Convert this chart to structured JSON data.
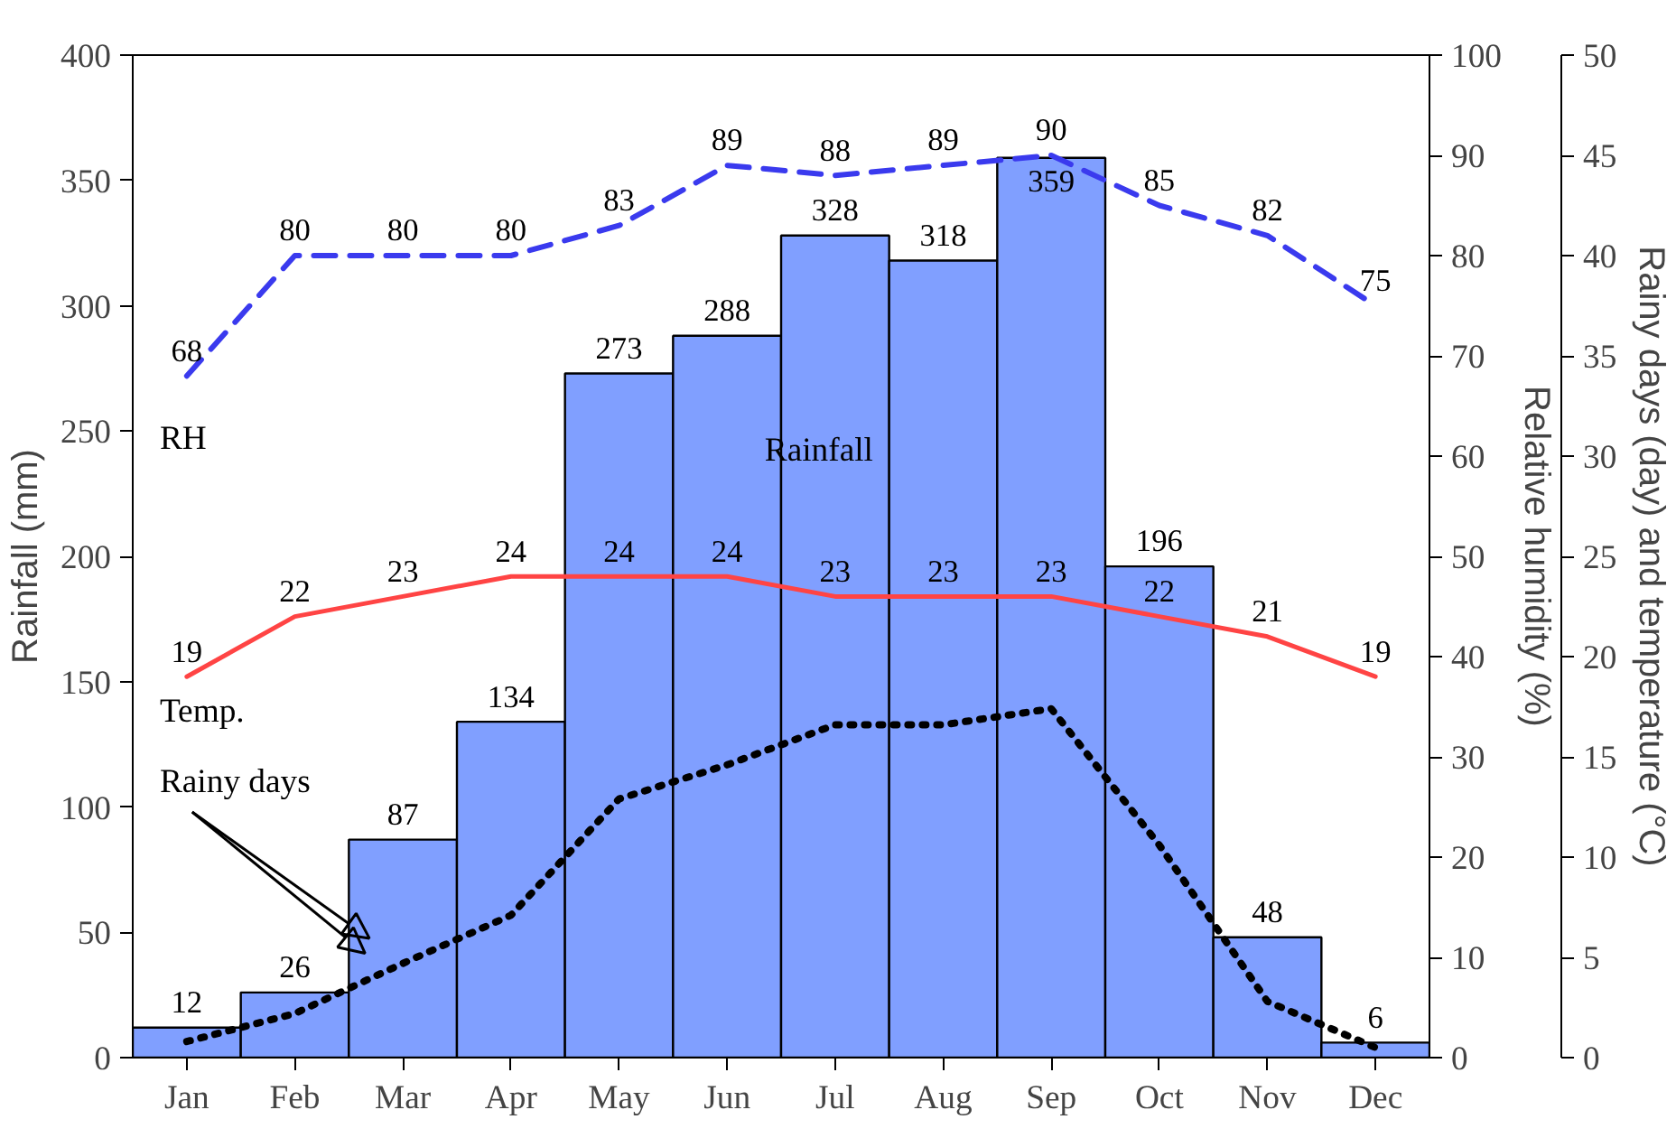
{
  "chart_data": {
    "type": "bar",
    "categories": [
      "Jan",
      "Feb",
      "Mar",
      "Apr",
      "May",
      "Jun",
      "Jul",
      "Aug",
      "Sep",
      "Oct",
      "Nov",
      "Dec"
    ],
    "ylabel": "Rainfall (mm)",
    "y2label": "Relative humidity (%)",
    "y3label": "Rainy days (day) and temperature (°C)",
    "ylim": [
      0,
      400
    ],
    "yticks": [
      0,
      50,
      100,
      150,
      200,
      250,
      300,
      350,
      400
    ],
    "y2lim": [
      0,
      100
    ],
    "y2ticks": [
      0,
      10,
      20,
      30,
      40,
      50,
      60,
      70,
      80,
      90,
      100
    ],
    "y3lim": [
      0,
      50
    ],
    "y3ticks": [
      0,
      5,
      10,
      15,
      20,
      25,
      30,
      35,
      40,
      45,
      50
    ],
    "grid": false,
    "series": [
      {
        "color": "#809fff",
        "values": [
          12,
          26,
          87,
          134,
          273,
          288,
          328,
          318,
          359,
          196,
          48,
          6
        ],
        "value_labels": [
          "12",
          "26",
          "87",
          "134",
          "273",
          "288",
          "328",
          "318",
          "359",
          "196",
          "48",
          "6"
        ]
      },
      {
        "type": "line",
        "axis": "y2",
        "color": "#3a3aee",
        "line_style": "dashed",
        "values": [
          68,
          80,
          80,
          80,
          83,
          89,
          88,
          89,
          90,
          85,
          82,
          75
        ],
        "value_labels": [
          "68",
          "80",
          "80",
          "80",
          "83",
          "89",
          "88",
          "89",
          "90",
          "85",
          "82",
          "75"
        ]
      },
      {
        "type": "line",
        "axis": "y3",
        "color": "#ff4444",
        "line_style": "solid",
        "values": [
          19,
          22,
          23,
          24,
          24,
          24,
          23,
          23,
          23,
          22,
          21,
          19
        ],
        "value_labels": [
          "19",
          "22",
          "23",
          "24",
          "24",
          "24",
          "23",
          "23",
          "23",
          "22",
          "21",
          "19"
        ]
      },
      {
        "type": "line",
        "axis": "y3",
        "color": "#000000",
        "line_style": "dotted",
        "values": [
          0.8,
          2.2,
          4.7,
          7.1,
          12.9,
          14.6,
          16.6,
          16.6,
          17.4,
          10.6,
          2.8,
          0.5
        ]
      }
    ],
    "annotations": [
      "RH",
      "Rainfall",
      "Temp.",
      "Rainy days"
    ]
  }
}
